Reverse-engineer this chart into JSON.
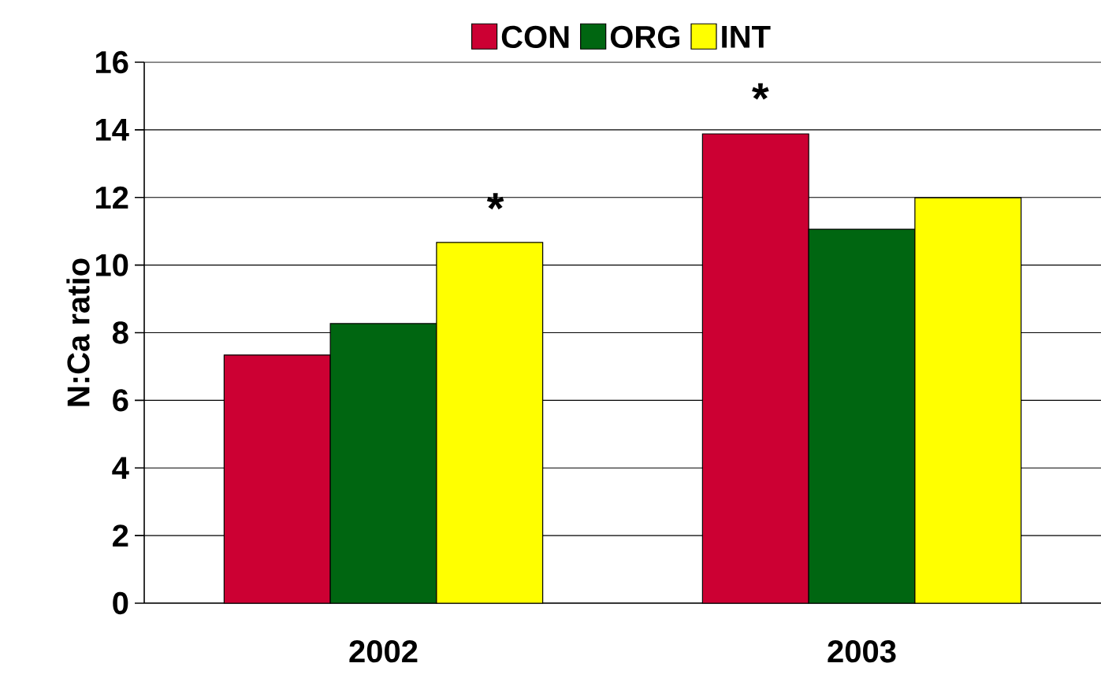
{
  "chart_data": {
    "type": "bar",
    "ylabel": "N:Ca ratio",
    "categories": [
      "2002",
      "2003"
    ],
    "series": [
      {
        "name": "CON",
        "color": "#cc0033",
        "values": [
          7.34,
          13.88
        ]
      },
      {
        "name": "ORG",
        "color": "#006611",
        "values": [
          8.27,
          11.06
        ]
      },
      {
        "name": "INT",
        "color": "#ffff00",
        "values": [
          10.67,
          11.99
        ]
      }
    ],
    "ylim": [
      0,
      16
    ],
    "yticks": [
      0,
      2,
      4,
      6,
      8,
      10,
      12,
      14,
      16
    ],
    "grid": "y",
    "legend": "top",
    "annotations": [
      "*",
      "*"
    ]
  }
}
